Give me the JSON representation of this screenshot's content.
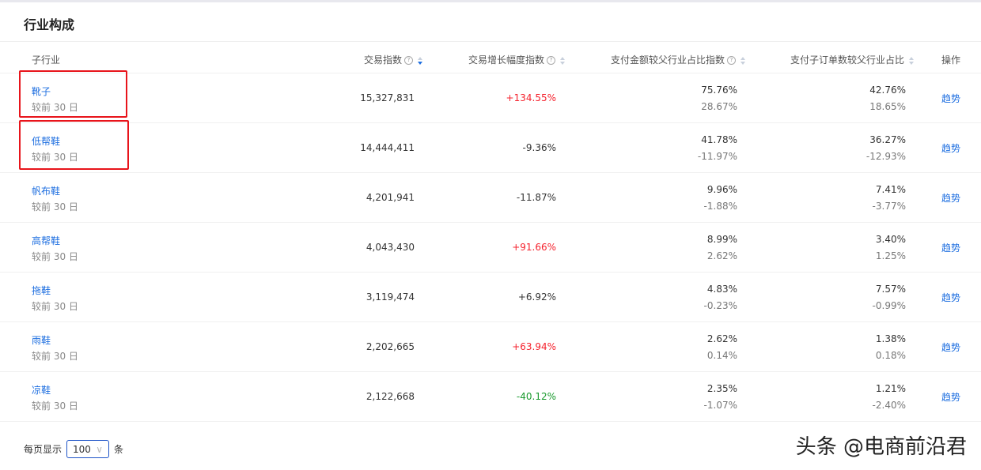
{
  "title": "行业构成",
  "headers": {
    "sub": "子行业",
    "trade": "交易指数",
    "growth": "交易增长幅度指数",
    "pay": "支付金额较父行业占比指数",
    "orders": "支付子订单数较父行业占比",
    "op": "操作"
  },
  "help_icon": "?",
  "rows": [
    {
      "name": "靴子",
      "sub": "较前 30 日",
      "trade": "15,327,831",
      "growth": "+134.55%",
      "growth_color": "red",
      "pay": "75.76%",
      "pay_chg": "28.67%",
      "orders": "42.76%",
      "orders_chg": "18.65%",
      "action": "趋势"
    },
    {
      "name": "低帮鞋",
      "sub": "较前 30 日",
      "trade": "14,444,411",
      "growth": "-9.36%",
      "growth_color": "gray",
      "pay": "41.78%",
      "pay_chg": "-11.97%",
      "orders": "36.27%",
      "orders_chg": "-12.93%",
      "action": "趋势"
    },
    {
      "name": "帆布鞋",
      "sub": "较前 30 日",
      "trade": "4,201,941",
      "growth": "-11.87%",
      "growth_color": "gray",
      "pay": "9.96%",
      "pay_chg": "-1.88%",
      "orders": "7.41%",
      "orders_chg": "-3.77%",
      "action": "趋势"
    },
    {
      "name": "高帮鞋",
      "sub": "较前 30 日",
      "trade": "4,043,430",
      "growth": "+91.66%",
      "growth_color": "red",
      "pay": "8.99%",
      "pay_chg": "2.62%",
      "orders": "3.40%",
      "orders_chg": "1.25%",
      "action": "趋势"
    },
    {
      "name": "拖鞋",
      "sub": "较前 30 日",
      "trade": "3,119,474",
      "growth": "+6.92%",
      "growth_color": "gray",
      "pay": "4.83%",
      "pay_chg": "-0.23%",
      "orders": "7.57%",
      "orders_chg": "-0.99%",
      "action": "趋势"
    },
    {
      "name": "雨鞋",
      "sub": "较前 30 日",
      "trade": "2,202,665",
      "growth": "+63.94%",
      "growth_color": "red",
      "pay": "2.62%",
      "pay_chg": "0.14%",
      "orders": "1.38%",
      "orders_chg": "0.18%",
      "action": "趋势"
    },
    {
      "name": "凉鞋",
      "sub": "较前 30 日",
      "trade": "2,122,668",
      "growth": "-40.12%",
      "growth_color": "green",
      "pay": "2.35%",
      "pay_chg": "-1.07%",
      "orders": "1.21%",
      "orders_chg": "-2.40%",
      "action": "趋势"
    }
  ],
  "footer": {
    "prefix": "每页显示",
    "page_size": "100",
    "suffix": "条"
  },
  "watermark": "头条 @电商前沿君",
  "colors": {
    "link": "#1f6fe0",
    "up": "#f5222d",
    "down": "#1a9a2e",
    "highlight_box": "#e8141b"
  }
}
